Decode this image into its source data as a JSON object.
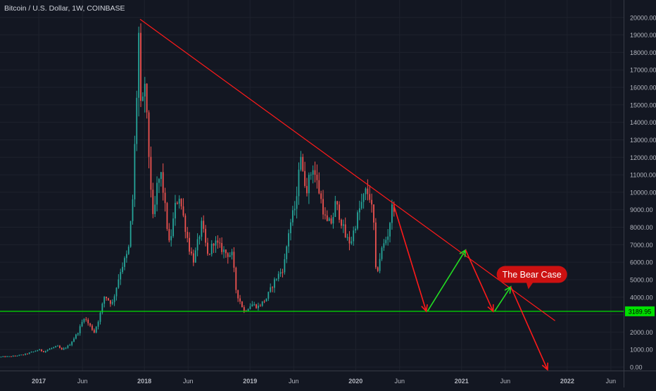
{
  "header": {
    "symbol_title": "Bitcoin / U.S. Dollar, 1W, COINBASE"
  },
  "colors": {
    "background": "#131722",
    "up": "#26a69a",
    "down": "#ef5350",
    "trendline": "#ff1a1a",
    "support": "#00e000",
    "arrow_up": "#22dd22",
    "arrow_down": "#ff1a1a",
    "callout_fill": "#cc1111",
    "axis_text": "#b2b5be",
    "grid": "#1e222d"
  },
  "chart_data": {
    "type": "candlestick",
    "title": "Bitcoin / U.S. Dollar, 1W, COINBASE",
    "ylim": [
      -200,
      21000
    ],
    "y_ticks": [
      0,
      1000,
      2000,
      3000,
      4000,
      5000,
      6000,
      7000,
      8000,
      9000,
      10000,
      11000,
      12000,
      13000,
      14000,
      15000,
      16000,
      17000,
      18000,
      19000,
      20000
    ],
    "y_tick_labels": [
      "0.00",
      "1000.00",
      "2000.00",
      "",
      "4000.00",
      "5000.00",
      "6000.00",
      "7000.00",
      "8000.00",
      "9000.00",
      "10000.00",
      "11000.00",
      "12000.00",
      "13000.00",
      "14000.00",
      "15000.00",
      "16000.00",
      "17000.00",
      "18000.00",
      "19000.00",
      "20000.00"
    ],
    "x_ticks": [
      "2017-01-01",
      "2017-06-01",
      "2018-01-01",
      "2018-06-01",
      "2019-01-01",
      "2019-06-01",
      "2020-01-01",
      "2020-06-01",
      "2021-01-01",
      "2021-06-01",
      "2022-01-01",
      "2022-06-01"
    ],
    "x_tick_labels": [
      "2017",
      "Jun",
      "2018",
      "Jun",
      "2019",
      "Jun",
      "2020",
      "Jun",
      "2021",
      "Jun",
      "2022",
      "Jun"
    ],
    "xlim": [
      "2016-08-20",
      "2022-07-15"
    ],
    "price_path": [
      [
        "2016-08-20",
        580
      ],
      [
        "2016-10-01",
        610
      ],
      [
        "2016-11-15",
        720
      ],
      [
        "2016-12-20",
        900
      ],
      [
        "2017-01-05",
        1000
      ],
      [
        "2017-01-20",
        880
      ],
      [
        "2017-02-20",
        1100
      ],
      [
        "2017-03-10",
        1200
      ],
      [
        "2017-03-25",
        980
      ],
      [
        "2017-04-20",
        1250
      ],
      [
        "2017-05-20",
        2000
      ],
      [
        "2017-06-10",
        2850
      ],
      [
        "2017-07-15",
        2000
      ],
      [
        "2017-08-01",
        2800
      ],
      [
        "2017-08-20",
        4100
      ],
      [
        "2017-09-15",
        3600
      ],
      [
        "2017-10-15",
        5600
      ],
      [
        "2017-11-10",
        6600
      ],
      [
        "2017-11-25",
        9600
      ],
      [
        "2017-12-10",
        16000
      ],
      [
        "2017-12-17",
        19500
      ],
      [
        "2017-12-24",
        14000
      ],
      [
        "2018-01-07",
        16500
      ],
      [
        "2018-01-14",
        13700
      ],
      [
        "2018-02-04",
        8200
      ],
      [
        "2018-02-18",
        10500
      ],
      [
        "2018-03-04",
        11000
      ],
      [
        "2018-04-01",
        6900
      ],
      [
        "2018-04-22",
        9300
      ],
      [
        "2018-05-05",
        9800
      ],
      [
        "2018-06-10",
        6700
      ],
      [
        "2018-06-24",
        6100
      ],
      [
        "2018-07-22",
        8200
      ],
      [
        "2018-08-12",
        6300
      ],
      [
        "2018-09-01",
        7200
      ],
      [
        "2018-10-15",
        6500
      ],
      [
        "2018-11-04",
        6400
      ],
      [
        "2018-11-18",
        4300
      ],
      [
        "2018-12-15",
        3200
      ],
      [
        "2019-01-10",
        3600
      ],
      [
        "2019-02-01",
        3450
      ],
      [
        "2019-03-01",
        3900
      ],
      [
        "2019-04-01",
        5000
      ],
      [
        "2019-05-01",
        5700
      ],
      [
        "2019-05-20",
        8000
      ],
      [
        "2019-06-15",
        9500
      ],
      [
        "2019-06-26",
        12800
      ],
      [
        "2019-07-05",
        11000
      ],
      [
        "2019-07-20",
        10300
      ],
      [
        "2019-08-10",
        11500
      ],
      [
        "2019-09-01",
        10000
      ],
      [
        "2019-09-25",
        8200
      ],
      [
        "2019-10-15",
        8300
      ],
      [
        "2019-10-27",
        9400
      ],
      [
        "2019-11-15",
        8400
      ],
      [
        "2019-12-01",
        7400
      ],
      [
        "2019-12-18",
        7100
      ],
      [
        "2020-01-15",
        8900
      ],
      [
        "2020-02-10",
        10100
      ],
      [
        "2020-02-24",
        9700
      ],
      [
        "2020-03-08",
        8000
      ],
      [
        "2020-03-15",
        5100
      ],
      [
        "2020-04-01",
        6600
      ],
      [
        "2020-04-25",
        7600
      ],
      [
        "2020-05-10",
        9200
      ]
    ],
    "annotations": {
      "support_level": 3189.95,
      "support_label": "3189.95",
      "trendline": [
        [
          "2017-12-17",
          19900
        ],
        [
          "2021-11-20",
          2650
        ]
      ],
      "arrows": [
        {
          "direction": "down",
          "from": [
            "2020-05-11",
            9300
          ],
          "to": [
            "2020-09-01",
            3189.95
          ]
        },
        {
          "direction": "up",
          "from": [
            "2020-09-05",
            3189.95
          ],
          "to": [
            "2021-01-15",
            6700
          ]
        },
        {
          "direction": "down",
          "from": [
            "2021-01-15",
            6700
          ],
          "to": [
            "2021-04-20",
            3189.95
          ]
        },
        {
          "direction": "up",
          "from": [
            "2021-04-25",
            3189.95
          ],
          "to": [
            "2021-06-20",
            4600
          ]
        },
        {
          "direction": "down",
          "from": [
            "2021-06-20",
            4600
          ],
          "to": [
            "2021-10-25",
            -150
          ]
        }
      ],
      "callout": {
        "text": "The Bear Case",
        "at": [
          "2021-09-01",
          5300
        ]
      }
    }
  }
}
